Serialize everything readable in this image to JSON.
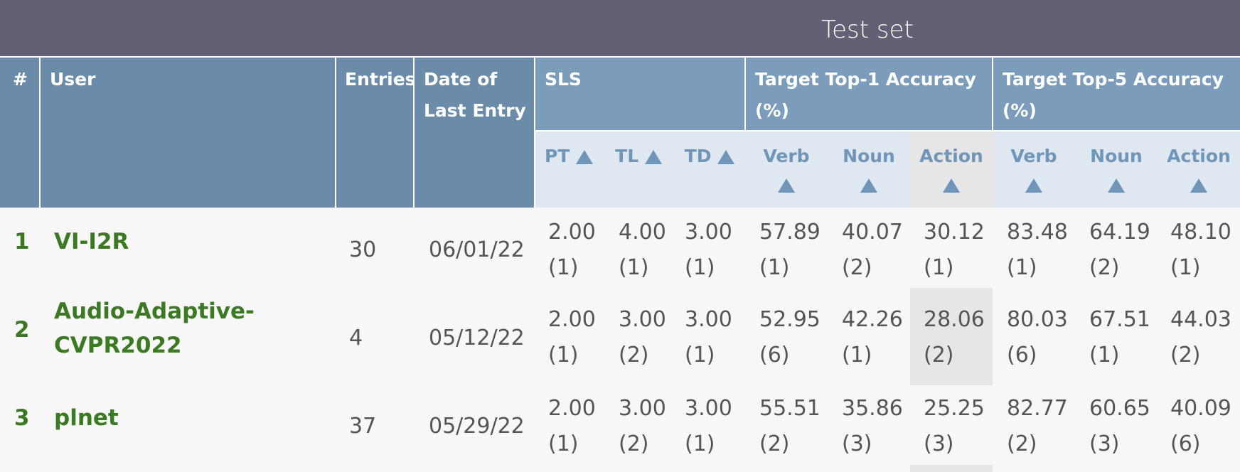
{
  "banner": {
    "title": "Test set"
  },
  "header": {
    "rank": "#",
    "user": "User",
    "entries": "Entries",
    "date": "Date of Last Entry",
    "sls": "SLS",
    "top1": "Target Top-1 Accuracy (%)",
    "top5": "Target Top-5 Accuracy (%)"
  },
  "subheader": {
    "pt": "PT",
    "tl": "TL",
    "td": "TD",
    "verb1": "Verb",
    "noun1": "Noun",
    "action1": "Action",
    "verb5": "Verb",
    "noun5": "Noun",
    "action5": "Action"
  },
  "rows": [
    {
      "rank": "1",
      "user": "VI-I2R",
      "entries": "30",
      "date": "06/01/22",
      "pt": [
        "2.00",
        "(1)"
      ],
      "tl": [
        "4.00",
        "(1)"
      ],
      "td": [
        "3.00",
        "(1)"
      ],
      "verb1": [
        "57.89",
        "(1)"
      ],
      "noun1": [
        "40.07",
        "(2)"
      ],
      "action1": [
        "30.12",
        "(1)"
      ],
      "verb5": [
        "83.48",
        "(1)"
      ],
      "noun5": [
        "64.19",
        "(2)"
      ],
      "action5": [
        "48.10",
        "(1)"
      ]
    },
    {
      "rank": "2",
      "user_line1": "Audio-Adaptive-",
      "user_line2": "CVPR2022",
      "entries": "4",
      "date": "05/12/22",
      "pt": [
        "2.00",
        "(1)"
      ],
      "tl": [
        "3.00",
        "(2)"
      ],
      "td": [
        "3.00",
        "(1)"
      ],
      "verb1": [
        "52.95",
        "(6)"
      ],
      "noun1": [
        "42.26",
        "(1)"
      ],
      "action1": [
        "28.06",
        "(2)"
      ],
      "verb5": [
        "80.03",
        "(6)"
      ],
      "noun5": [
        "67.51",
        "(1)"
      ],
      "action5": [
        "44.03",
        "(2)"
      ]
    },
    {
      "rank": "3",
      "user": "plnet",
      "entries": "37",
      "date": "05/29/22",
      "pt": [
        "2.00",
        "(1)"
      ],
      "tl": [
        "3.00",
        "(2)"
      ],
      "td": [
        "3.00",
        "(1)"
      ],
      "verb1": [
        "55.51",
        "(2)"
      ],
      "noun1": [
        "35.86",
        "(3)"
      ],
      "action1": [
        "25.25",
        "(3)"
      ],
      "verb5": [
        "82.77",
        "(2)"
      ],
      "noun5": [
        "60.65",
        "(3)"
      ],
      "action5": [
        "40.09",
        "(6)"
      ]
    }
  ],
  "colors": {
    "banner": "#636075",
    "header": "#6b8ca8",
    "link": "#3b7a23"
  }
}
